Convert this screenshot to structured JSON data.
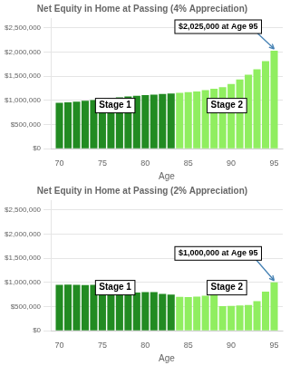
{
  "chart_data": [
    {
      "type": "bar",
      "title": "Net Equity in Home at Passing (4% Appreciation)",
      "xlabel": "Age",
      "x": [
        70,
        71,
        72,
        73,
        74,
        75,
        76,
        77,
        78,
        79,
        80,
        81,
        82,
        83,
        84,
        85,
        86,
        87,
        88,
        89,
        90,
        91,
        92,
        93,
        94,
        95
      ],
      "values": [
        950000,
        960000,
        975000,
        990000,
        1005000,
        1020000,
        1040000,
        1060000,
        1080000,
        1095000,
        1110000,
        1120000,
        1130000,
        1140000,
        1155000,
        1170000,
        1185000,
        1210000,
        1240000,
        1270000,
        1340000,
        1430000,
        1530000,
        1640000,
        1810000,
        2025000
      ],
      "colors": [
        "#228B22",
        "#228B22",
        "#228B22",
        "#228B22",
        "#228B22",
        "#228B22",
        "#228B22",
        "#228B22",
        "#228B22",
        "#228B22",
        "#228B22",
        "#228B22",
        "#228B22",
        "#228B22",
        "#90EE60",
        "#90EE60",
        "#90EE60",
        "#90EE60",
        "#90EE60",
        "#90EE60",
        "#90EE60",
        "#90EE60",
        "#90EE60",
        "#90EE60",
        "#90EE60",
        "#90EE60"
      ],
      "xlim": [
        69,
        96
      ],
      "xticks": [
        70,
        75,
        80,
        85,
        90,
        95
      ],
      "ylim": [
        0,
        2700000
      ],
      "yticks": [
        {
          "value": 0,
          "label": "$0"
        },
        {
          "value": 500000,
          "label": "$500,000"
        },
        {
          "value": 1000000,
          "label": "$1,000,000"
        },
        {
          "value": 1500000,
          "label": "$1,500,000"
        },
        {
          "value": 2000000,
          "label": "$2,000,000"
        },
        {
          "value": 2500000,
          "label": "$2,500,000"
        }
      ],
      "grid": true,
      "annotations": [
        {
          "text": "Stage 1",
          "x": 76.5
        },
        {
          "text": "Stage 2",
          "x": 89.5
        },
        {
          "text": "$2,025,000 at Age 95",
          "x": 95,
          "y": 2025000
        }
      ]
    },
    {
      "type": "bar",
      "title": "Net Equity in Home at Passing (2% Appreciation)",
      "xlabel": "Age",
      "x": [
        70,
        71,
        72,
        73,
        74,
        75,
        76,
        77,
        78,
        79,
        80,
        81,
        82,
        83,
        84,
        85,
        86,
        87,
        88,
        89,
        90,
        91,
        92,
        93,
        94,
        95
      ],
      "values": [
        950000,
        955000,
        950000,
        945000,
        950000,
        945000,
        820000,
        810000,
        800000,
        790000,
        800000,
        800000,
        760000,
        750000,
        700000,
        695000,
        705000,
        725000,
        760000,
        510000,
        515000,
        525000,
        535000,
        610000,
        810000,
        1000000
      ],
      "colors": [
        "#228B22",
        "#228B22",
        "#228B22",
        "#228B22",
        "#228B22",
        "#228B22",
        "#228B22",
        "#228B22",
        "#228B22",
        "#228B22",
        "#228B22",
        "#228B22",
        "#228B22",
        "#228B22",
        "#90EE60",
        "#90EE60",
        "#90EE60",
        "#90EE60",
        "#90EE60",
        "#90EE60",
        "#90EE60",
        "#90EE60",
        "#90EE60",
        "#90EE60",
        "#90EE60",
        "#90EE60"
      ],
      "xlim": [
        69,
        96
      ],
      "xticks": [
        70,
        75,
        80,
        85,
        90,
        95
      ],
      "ylim": [
        0,
        2700000
      ],
      "yticks": [
        {
          "value": 0,
          "label": "$0"
        },
        {
          "value": 500000,
          "label": "$500,000"
        },
        {
          "value": 1000000,
          "label": "$1,000,000"
        },
        {
          "value": 1500000,
          "label": "$1,500,000"
        },
        {
          "value": 2000000,
          "label": "$2,000,000"
        },
        {
          "value": 2500000,
          "label": "$2,500,000"
        }
      ],
      "grid": true,
      "annotations": [
        {
          "text": "Stage 1",
          "x": 76.5
        },
        {
          "text": "Stage 2",
          "x": 89.5
        },
        {
          "text": "$1,000,000 at Age 95",
          "x": 95,
          "y": 1000000
        }
      ]
    }
  ]
}
